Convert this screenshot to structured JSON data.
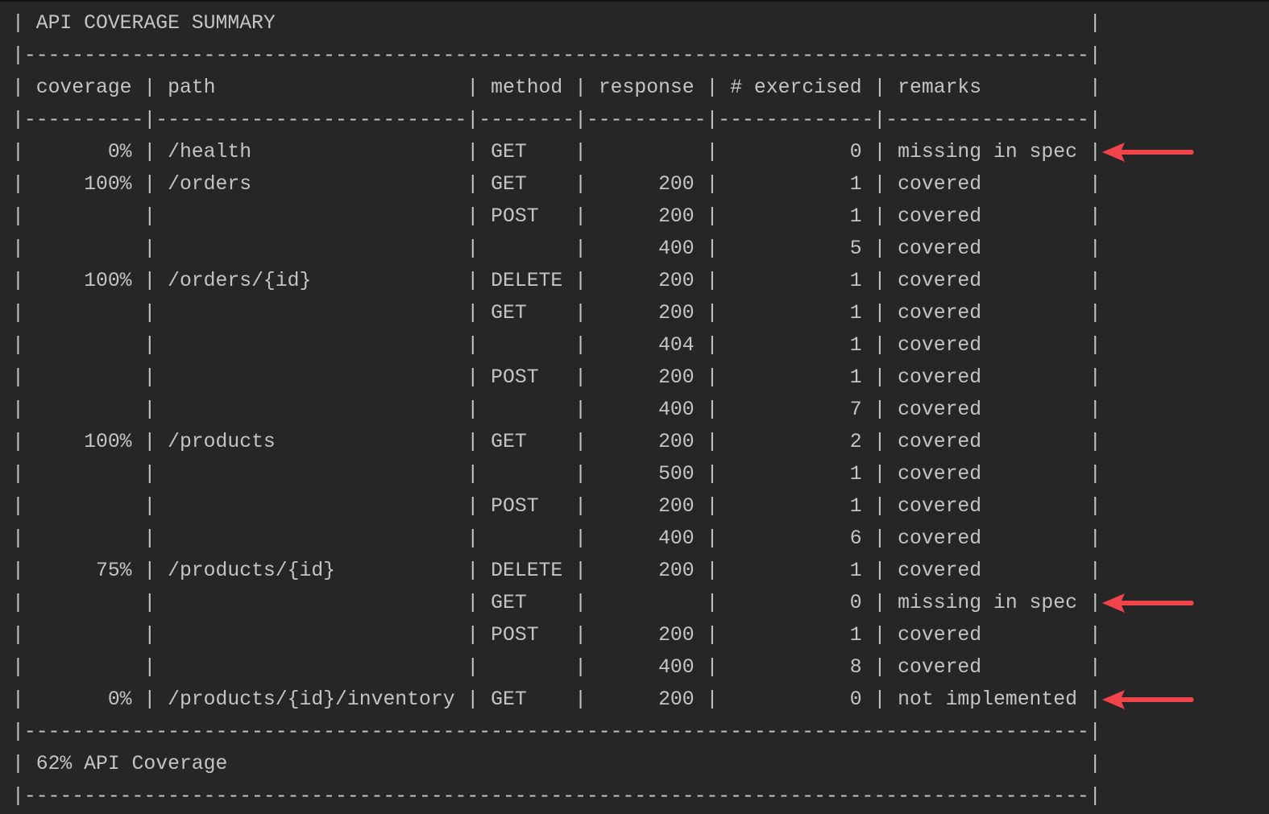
{
  "title": "API COVERAGE SUMMARY",
  "columns": [
    "coverage",
    "path",
    "method",
    "response",
    "# exercised",
    "remarks"
  ],
  "rows": [
    {
      "coverage": "0%",
      "path": "/health",
      "method": "GET",
      "response": "",
      "exercised": "0",
      "remarks": "missing in spec",
      "flagged": true
    },
    {
      "coverage": "100%",
      "path": "/orders",
      "method": "GET",
      "response": "200",
      "exercised": "1",
      "remarks": "covered"
    },
    {
      "coverage": "",
      "path": "",
      "method": "POST",
      "response": "200",
      "exercised": "1",
      "remarks": "covered"
    },
    {
      "coverage": "",
      "path": "",
      "method": "",
      "response": "400",
      "exercised": "5",
      "remarks": "covered"
    },
    {
      "coverage": "100%",
      "path": "/orders/{id}",
      "method": "DELETE",
      "response": "200",
      "exercised": "1",
      "remarks": "covered"
    },
    {
      "coverage": "",
      "path": "",
      "method": "GET",
      "response": "200",
      "exercised": "1",
      "remarks": "covered"
    },
    {
      "coverage": "",
      "path": "",
      "method": "",
      "response": "404",
      "exercised": "1",
      "remarks": "covered"
    },
    {
      "coverage": "",
      "path": "",
      "method": "POST",
      "response": "200",
      "exercised": "1",
      "remarks": "covered"
    },
    {
      "coverage": "",
      "path": "",
      "method": "",
      "response": "400",
      "exercised": "7",
      "remarks": "covered"
    },
    {
      "coverage": "100%",
      "path": "/products",
      "method": "GET",
      "response": "200",
      "exercised": "2",
      "remarks": "covered"
    },
    {
      "coverage": "",
      "path": "",
      "method": "",
      "response": "500",
      "exercised": "1",
      "remarks": "covered"
    },
    {
      "coverage": "",
      "path": "",
      "method": "POST",
      "response": "200",
      "exercised": "1",
      "remarks": "covered"
    },
    {
      "coverage": "",
      "path": "",
      "method": "",
      "response": "400",
      "exercised": "6",
      "remarks": "covered"
    },
    {
      "coverage": "75%",
      "path": "/products/{id}",
      "method": "DELETE",
      "response": "200",
      "exercised": "1",
      "remarks": "covered"
    },
    {
      "coverage": "",
      "path": "",
      "method": "GET",
      "response": "",
      "exercised": "0",
      "remarks": "missing in spec",
      "flagged": true
    },
    {
      "coverage": "",
      "path": "",
      "method": "POST",
      "response": "200",
      "exercised": "1",
      "remarks": "covered"
    },
    {
      "coverage": "",
      "path": "",
      "method": "",
      "response": "400",
      "exercised": "8",
      "remarks": "covered"
    },
    {
      "coverage": "0%",
      "path": "/products/{id}/inventory",
      "method": "GET",
      "response": "200",
      "exercised": "0",
      "remarks": "not implemented",
      "flagged": true
    }
  ],
  "footer": "62% API Coverage",
  "colors": {
    "background": "#262626",
    "text": "#c4c4c4",
    "arrow": "#f0434a"
  }
}
